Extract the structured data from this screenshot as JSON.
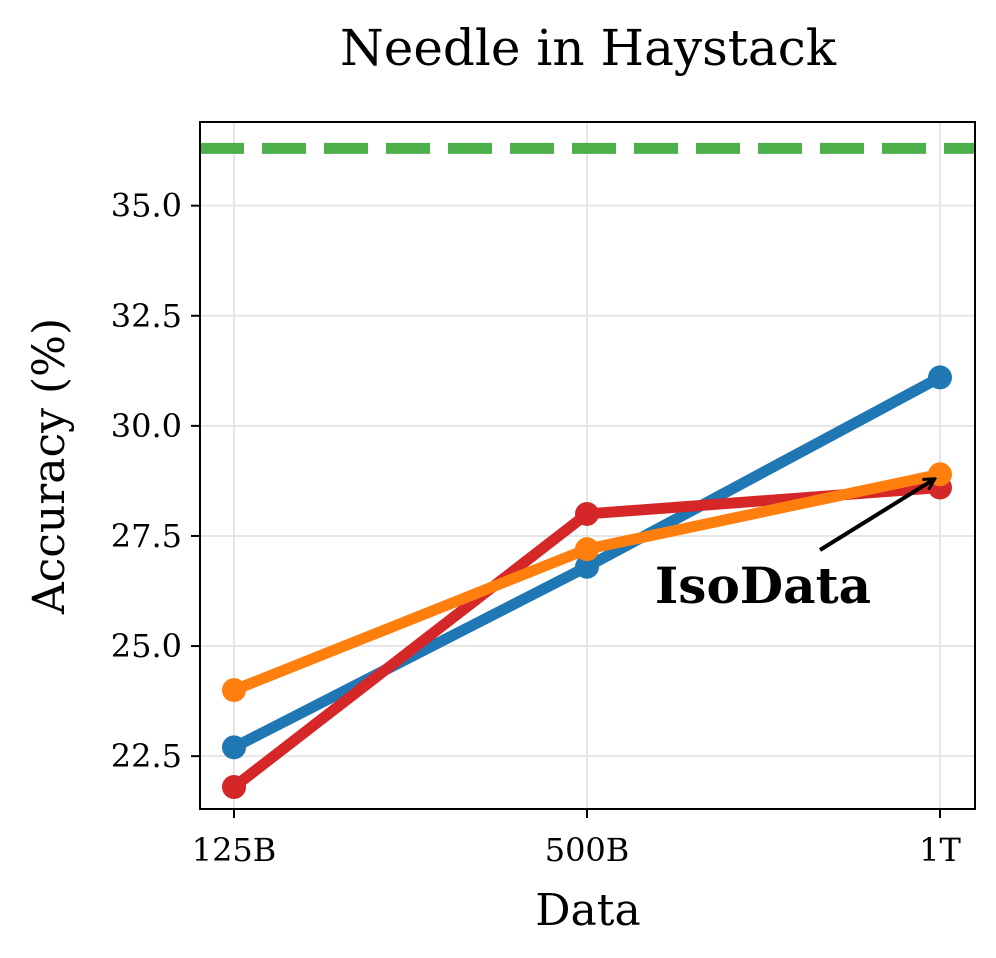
{
  "chart_data": {
    "type": "line",
    "title": "Needle in Haystack",
    "xlabel": "Data",
    "ylabel": "Accuracy (%)",
    "categories": [
      "125B",
      "500B",
      "1T"
    ],
    "ylim": [
      21.3,
      36.9
    ],
    "yticks": [
      "22.5",
      "25.0",
      "27.5",
      "30.0",
      "32.5",
      "35.0"
    ],
    "grid": true,
    "series": [
      {
        "color": "#1f77b4",
        "values": [
          22.7,
          26.8,
          31.1
        ]
      },
      {
        "color": "#d62728",
        "values": [
          21.8,
          28.0,
          28.6
        ]
      },
      {
        "color": "#ff7f0e",
        "values": [
          24.0,
          27.2,
          28.9
        ]
      }
    ],
    "reference_line": {
      "color": "#4daf4a",
      "value": 36.3,
      "style": "dashed"
    },
    "annotation": {
      "text": "IsoData",
      "target_series_index": 2,
      "target_category": "1T"
    }
  }
}
